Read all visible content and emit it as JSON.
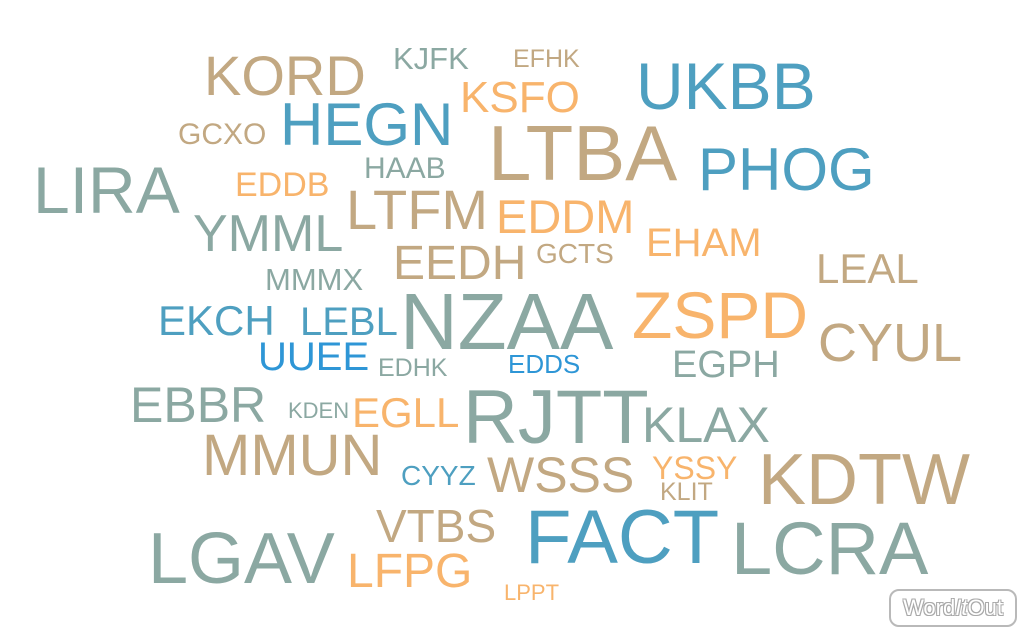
{
  "colors": {
    "tan": "#c2a882",
    "slate": "#8ba8a2",
    "blue": "#4e9fc0",
    "orange": "#f8b46c",
    "bright_blue": "#2e96d6"
  },
  "words": [
    {
      "text": "KORD",
      "color": "tan"
    },
    {
      "text": "KJFK",
      "color": "slate"
    },
    {
      "text": "EFHK",
      "color": "tan"
    },
    {
      "text": "UKBB",
      "color": "blue"
    },
    {
      "text": "KSFO",
      "color": "orange"
    },
    {
      "text": "HEGN",
      "color": "blue"
    },
    {
      "text": "GCXO",
      "color": "tan"
    },
    {
      "text": "LTBA",
      "color": "tan"
    },
    {
      "text": "PHOG",
      "color": "blue"
    },
    {
      "text": "HAAB",
      "color": "slate"
    },
    {
      "text": "LIRA",
      "color": "slate"
    },
    {
      "text": "EDDB",
      "color": "orange"
    },
    {
      "text": "LTFM",
      "color": "tan"
    },
    {
      "text": "EDDM",
      "color": "orange"
    },
    {
      "text": "YMML",
      "color": "slate"
    },
    {
      "text": "EHAM",
      "color": "orange"
    },
    {
      "text": "GCTS",
      "color": "tan"
    },
    {
      "text": "EEDH",
      "color": "tan"
    },
    {
      "text": "LEAL",
      "color": "tan"
    },
    {
      "text": "MMMX",
      "color": "slate"
    },
    {
      "text": "NZAA",
      "color": "slate"
    },
    {
      "text": "ZSPD",
      "color": "orange"
    },
    {
      "text": "EKCH",
      "color": "blue"
    },
    {
      "text": "LEBL",
      "color": "blue"
    },
    {
      "text": "CYUL",
      "color": "tan"
    },
    {
      "text": "UUEE",
      "color": "bright_blue"
    },
    {
      "text": "EDHK",
      "color": "slate"
    },
    {
      "text": "EDDS",
      "color": "bright_blue"
    },
    {
      "text": "EGPH",
      "color": "slate"
    },
    {
      "text": "EBBR",
      "color": "slate"
    },
    {
      "text": "KDEN",
      "color": "slate"
    },
    {
      "text": "EGLL",
      "color": "orange"
    },
    {
      "text": "RJTT",
      "color": "slate"
    },
    {
      "text": "KLAX",
      "color": "slate"
    },
    {
      "text": "MMUN",
      "color": "tan"
    },
    {
      "text": "CYYZ",
      "color": "blue"
    },
    {
      "text": "WSSS",
      "color": "tan"
    },
    {
      "text": "YSSY",
      "color": "orange"
    },
    {
      "text": "KLIT",
      "color": "tan"
    },
    {
      "text": "KDTW",
      "color": "tan"
    },
    {
      "text": "VTBS",
      "color": "tan"
    },
    {
      "text": "FACT",
      "color": "blue"
    },
    {
      "text": "LCRA",
      "color": "slate"
    },
    {
      "text": "LGAV",
      "color": "slate"
    },
    {
      "text": "LFPG",
      "color": "orange"
    },
    {
      "text": "LPPT",
      "color": "orange"
    }
  ],
  "logo": {
    "word": "Word",
    "it": "It",
    "out": "Out"
  }
}
